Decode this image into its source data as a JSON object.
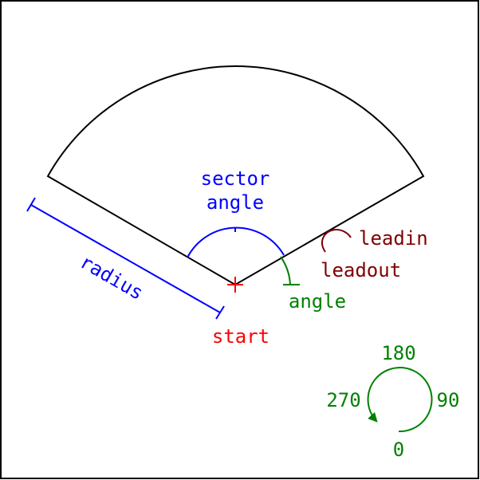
{
  "labels": {
    "sector_line1": "sector",
    "sector_line2": "angle",
    "radius": "radius",
    "start": "start",
    "angle": "angle",
    "leadin": "leadin",
    "leadout": "leadout",
    "dir_180": "180",
    "dir_270": "270",
    "dir_90": "90",
    "dir_0": "0"
  },
  "colors": {
    "outline": "#000000",
    "sector_angle": "#0000ff",
    "radius": "#0000ff",
    "start": "#ff0000",
    "angle": "#008000",
    "lead": "#800000",
    "direction": "#008000"
  }
}
